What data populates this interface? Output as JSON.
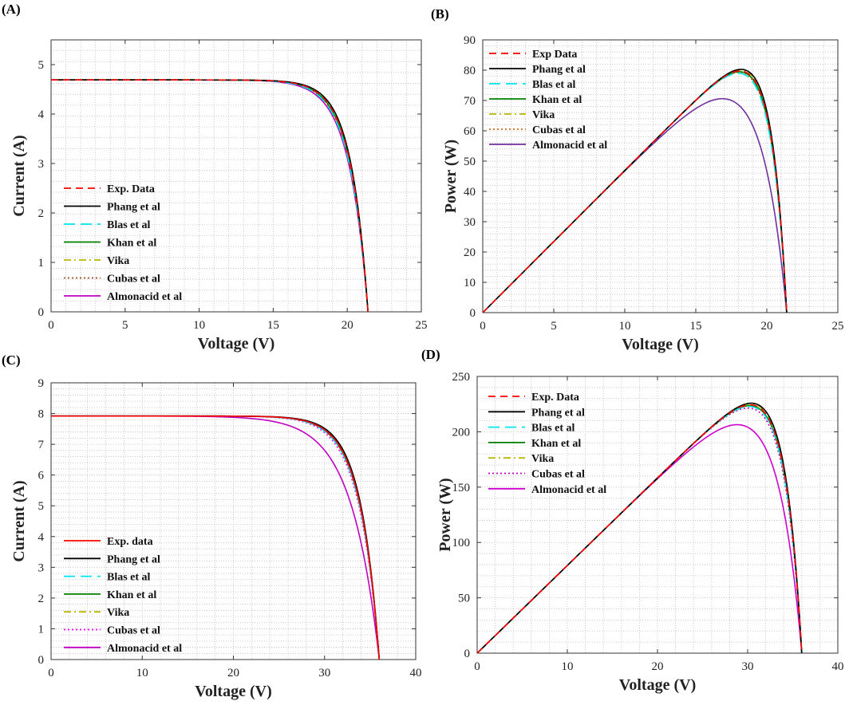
{
  "figure": {
    "panels": [
      {
        "label": "(A)",
        "chart_data": {
          "type": "line",
          "title": "",
          "xlabel": "Voltage (V)",
          "ylabel": "Current (A)",
          "xlim": [
            0,
            25
          ],
          "ylim": [
            0,
            5.5
          ],
          "xticks": [
            0,
            5,
            10,
            15,
            20,
            25
          ],
          "yticks": [
            0,
            1,
            2,
            3,
            4,
            5
          ],
          "grid": true,
          "legend_position": "bottom-left",
          "curve": {
            "kind": "iv",
            "isc": 4.69,
            "voc": 21.4
          },
          "series": [
            {
              "name": "Exp. Data",
              "color": "#ff0000",
              "dash": "dashed",
              "a": 0.055,
              "k": 1.0
            },
            {
              "name": "Phang et al",
              "color": "#000000",
              "dash": "solid",
              "a": 0.053,
              "k": 1.0
            },
            {
              "name": "Blas et al",
              "color": "#00e5ee",
              "dash": "longdash",
              "a": 0.058,
              "k": 1.0
            },
            {
              "name": "Khan et al",
              "color": "#008000",
              "dash": "solid",
              "a": 0.056,
              "k": 1.0
            },
            {
              "name": "Vika",
              "color": "#b8b800",
              "dash": "dashdot",
              "a": 0.054,
              "k": 1.0
            },
            {
              "name": "Cubas et al",
              "color": "#a0522d",
              "dash": "dotted",
              "a": 0.057,
              "k": 1.0
            },
            {
              "name": "Almonacid et al",
              "color": "#c000c0",
              "dash": "solid",
              "a": 0.06,
              "k": 1.0
            }
          ]
        }
      },
      {
        "label": "(B)",
        "chart_data": {
          "type": "line",
          "title": "",
          "xlabel": "Voltage (V)",
          "ylabel": "Power (W)",
          "xlim": [
            0,
            25
          ],
          "ylim": [
            0,
            90
          ],
          "xticks": [
            0,
            5,
            10,
            15,
            20,
            25
          ],
          "yticks": [
            0,
            10,
            20,
            30,
            40,
            50,
            60,
            70,
            80,
            90
          ],
          "grid": true,
          "legend_position": "top-left",
          "curve": {
            "kind": "pv",
            "isc": 4.69,
            "voc": 21.4
          },
          "series": [
            {
              "name": "Exp Data",
              "color": "#ff0000",
              "dash": "dashed",
              "a": 0.055,
              "k": 1.0
            },
            {
              "name": "Phang et al",
              "color": "#000000",
              "dash": "solid",
              "a": 0.053,
              "k": 1.0
            },
            {
              "name": "Blas et al",
              "color": "#00e5ee",
              "dash": "longdash",
              "a": 0.058,
              "k": 1.0
            },
            {
              "name": "Khan et al",
              "color": "#008000",
              "dash": "solid",
              "a": 0.056,
              "k": 1.0
            },
            {
              "name": "Vika",
              "color": "#b8b800",
              "dash": "dashdot",
              "a": 0.054,
              "k": 1.0
            },
            {
              "name": "Cubas et al",
              "color": "#d2691e",
              "dash": "dotted",
              "a": 0.057,
              "k": 1.0
            },
            {
              "name": "Almonacid et al",
              "color": "#7030a0",
              "dash": "solid",
              "a": 0.095,
              "k": 1.0
            }
          ]
        }
      },
      {
        "label": "(C)",
        "chart_data": {
          "type": "line",
          "title": "",
          "xlabel": "Voltage (V)",
          "ylabel": "Current (A)",
          "xlim": [
            0,
            40
          ],
          "ylim": [
            0,
            9
          ],
          "xticks": [
            0,
            10,
            20,
            30,
            40
          ],
          "yticks": [
            0,
            1,
            2,
            3,
            4,
            5,
            6,
            7,
            8,
            9
          ],
          "grid": true,
          "legend_position": "bottom-left",
          "curve": {
            "kind": "iv",
            "isc": 7.92,
            "voc": 36.0
          },
          "series": [
            {
              "name": "Exp. data",
              "color": "#ff0000",
              "dash": "solid",
              "a": 0.058,
              "k": 1.0
            },
            {
              "name": "Phang et al",
              "color": "#000000",
              "dash": "solid",
              "a": 0.056,
              "k": 1.0
            },
            {
              "name": "Blas et al",
              "color": "#00e5ee",
              "dash": "longdash",
              "a": 0.06,
              "k": 1.0
            },
            {
              "name": "Khan et al",
              "color": "#008000",
              "dash": "solid",
              "a": 0.059,
              "k": 1.0
            },
            {
              "name": "Vika",
              "color": "#b8b800",
              "dash": "dashdot",
              "a": 0.057,
              "k": 1.0
            },
            {
              "name": "Cubas et al",
              "color": "#ff00ff",
              "dash": "dotted",
              "a": 0.062,
              "k": 1.0
            },
            {
              "name": "Almonacid et al",
              "color": "#c000c0",
              "dash": "solid",
              "a": 0.085,
              "k": 1.0
            }
          ]
        }
      },
      {
        "label": "(D)",
        "chart_data": {
          "type": "line",
          "title": "",
          "xlabel": "Voltage (V)",
          "ylabel": "Power (W)",
          "xlim": [
            0,
            40
          ],
          "ylim": [
            0,
            250
          ],
          "xticks": [
            0,
            10,
            20,
            30,
            40
          ],
          "yticks": [
            0,
            50,
            100,
            150,
            200,
            250
          ],
          "grid": true,
          "legend_position": "top-left",
          "curve": {
            "kind": "pv",
            "isc": 7.92,
            "voc": 36.0
          },
          "series": [
            {
              "name": "Exp. Data",
              "color": "#ff0000",
              "dash": "dashed",
              "a": 0.058,
              "k": 1.0
            },
            {
              "name": "Phang et al",
              "color": "#000000",
              "dash": "solid",
              "a": 0.056,
              "k": 1.0
            },
            {
              "name": "Blas et al",
              "color": "#00e5ee",
              "dash": "longdash",
              "a": 0.06,
              "k": 1.0
            },
            {
              "name": "Khan et al",
              "color": "#008000",
              "dash": "solid",
              "a": 0.059,
              "k": 1.0
            },
            {
              "name": "Vika",
              "color": "#b8b800",
              "dash": "dashdot",
              "a": 0.057,
              "k": 1.0
            },
            {
              "name": "Cubas et al",
              "color": "#c000c0",
              "dash": "dotted",
              "a": 0.062,
              "k": 1.0
            },
            {
              "name": "Almonacid et al",
              "color": "#d000d0",
              "dash": "solid",
              "a": 0.085,
              "k": 1.0
            }
          ]
        }
      }
    ]
  }
}
